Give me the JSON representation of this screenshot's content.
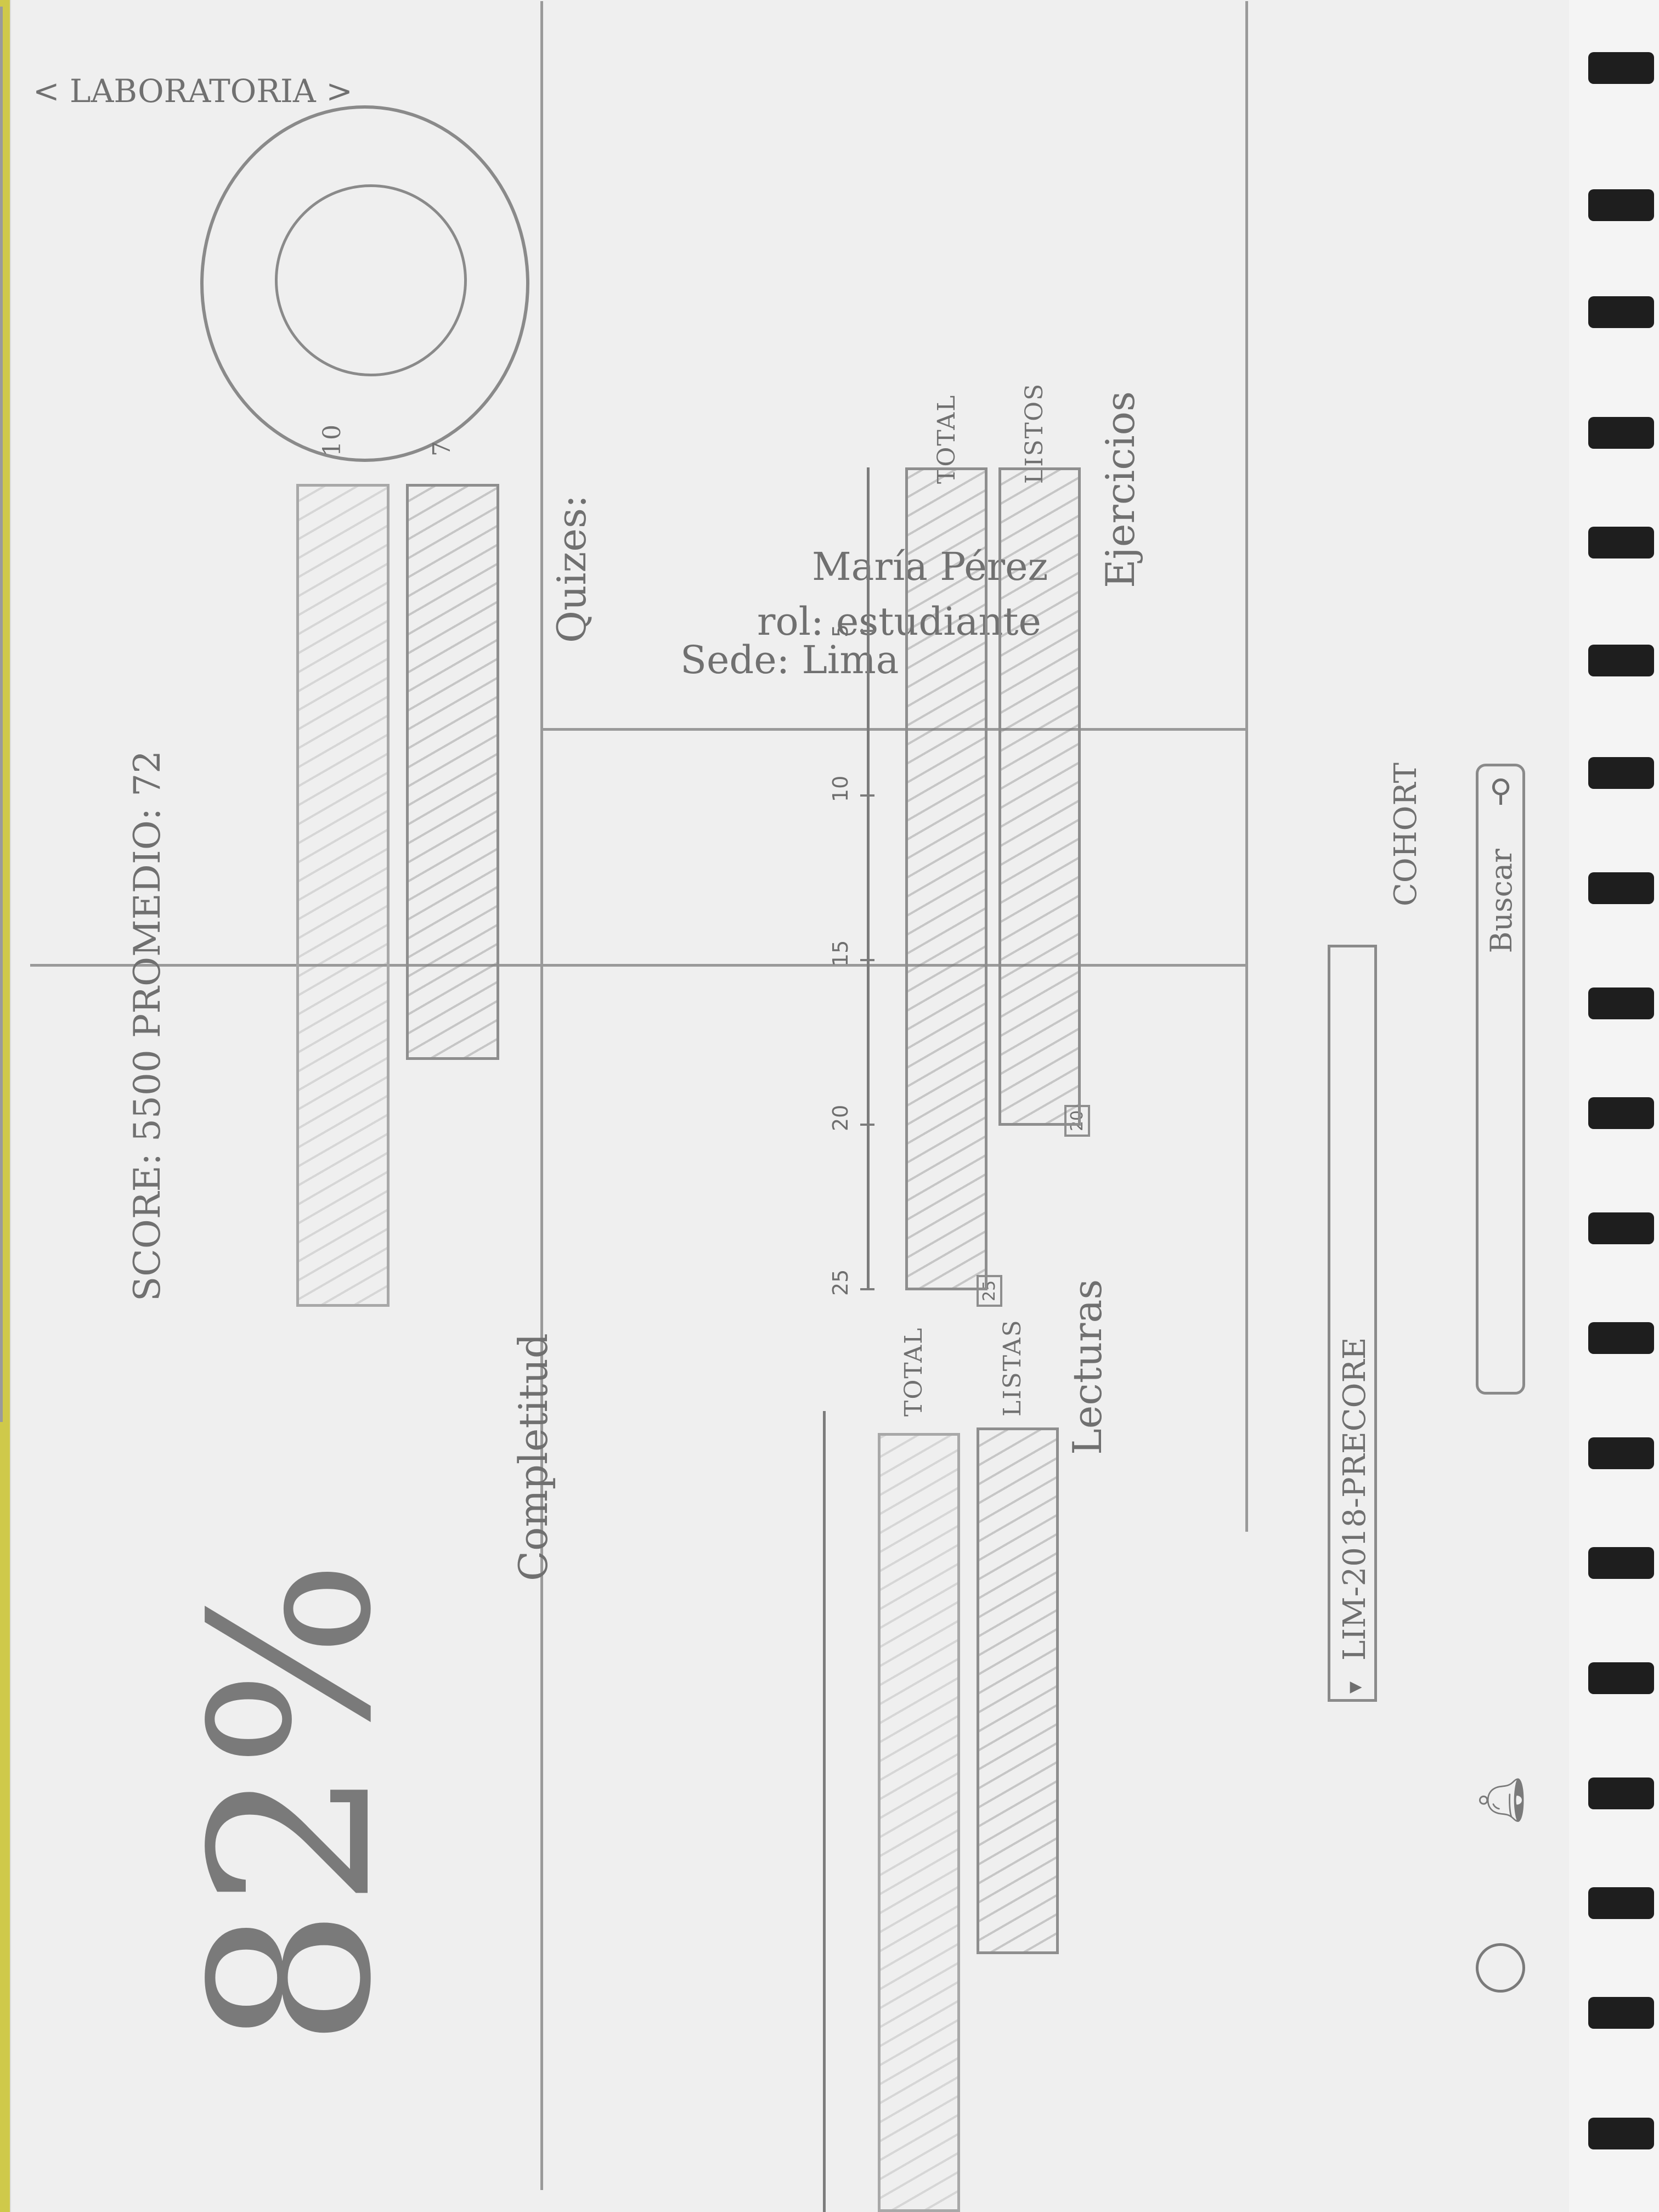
{
  "header": {
    "back_link": "< LABORATORIA >",
    "search_placeholder": "Buscar",
    "cohort_label": "COHORT",
    "cohort_value": "LIM-2018-PRECORE"
  },
  "profile": {
    "name": "María Pérez",
    "role": "rol: estudiante",
    "sede": "Sede: Lima"
  },
  "ejercicios": {
    "title": "Ejercicios",
    "row_labels": [
      "LISTOS",
      "TOTAL"
    ],
    "ticks": [
      "5",
      "10",
      "15",
      "20",
      "25"
    ],
    "tag_listos": "20",
    "tag_total": "25"
  },
  "lecturas": {
    "title": "Lecturas",
    "row_labels": [
      "LISTAS",
      "TOTAL"
    ]
  },
  "quizzes": {
    "title": "Quizes:",
    "row_labels": [
      "7",
      "10"
    ],
    "summary": "SCORE: 5500 PROMEDIO: 72"
  },
  "completitud": {
    "title": "Completitud",
    "value": "82%"
  },
  "chart_data": [
    {
      "type": "bar",
      "title": "Ejercicios",
      "categories": [
        "LISTOS",
        "TOTAL"
      ],
      "values": [
        20,
        25
      ],
      "xlim": [
        0,
        25
      ]
    },
    {
      "type": "bar",
      "title": "Lecturas",
      "categories": [
        "LISTAS",
        "TOTAL"
      ],
      "values": [
        null,
        null
      ]
    },
    {
      "type": "bar",
      "title": "Quizes:",
      "categories": [
        "7",
        "10"
      ],
      "values": [
        7,
        10
      ]
    }
  ]
}
